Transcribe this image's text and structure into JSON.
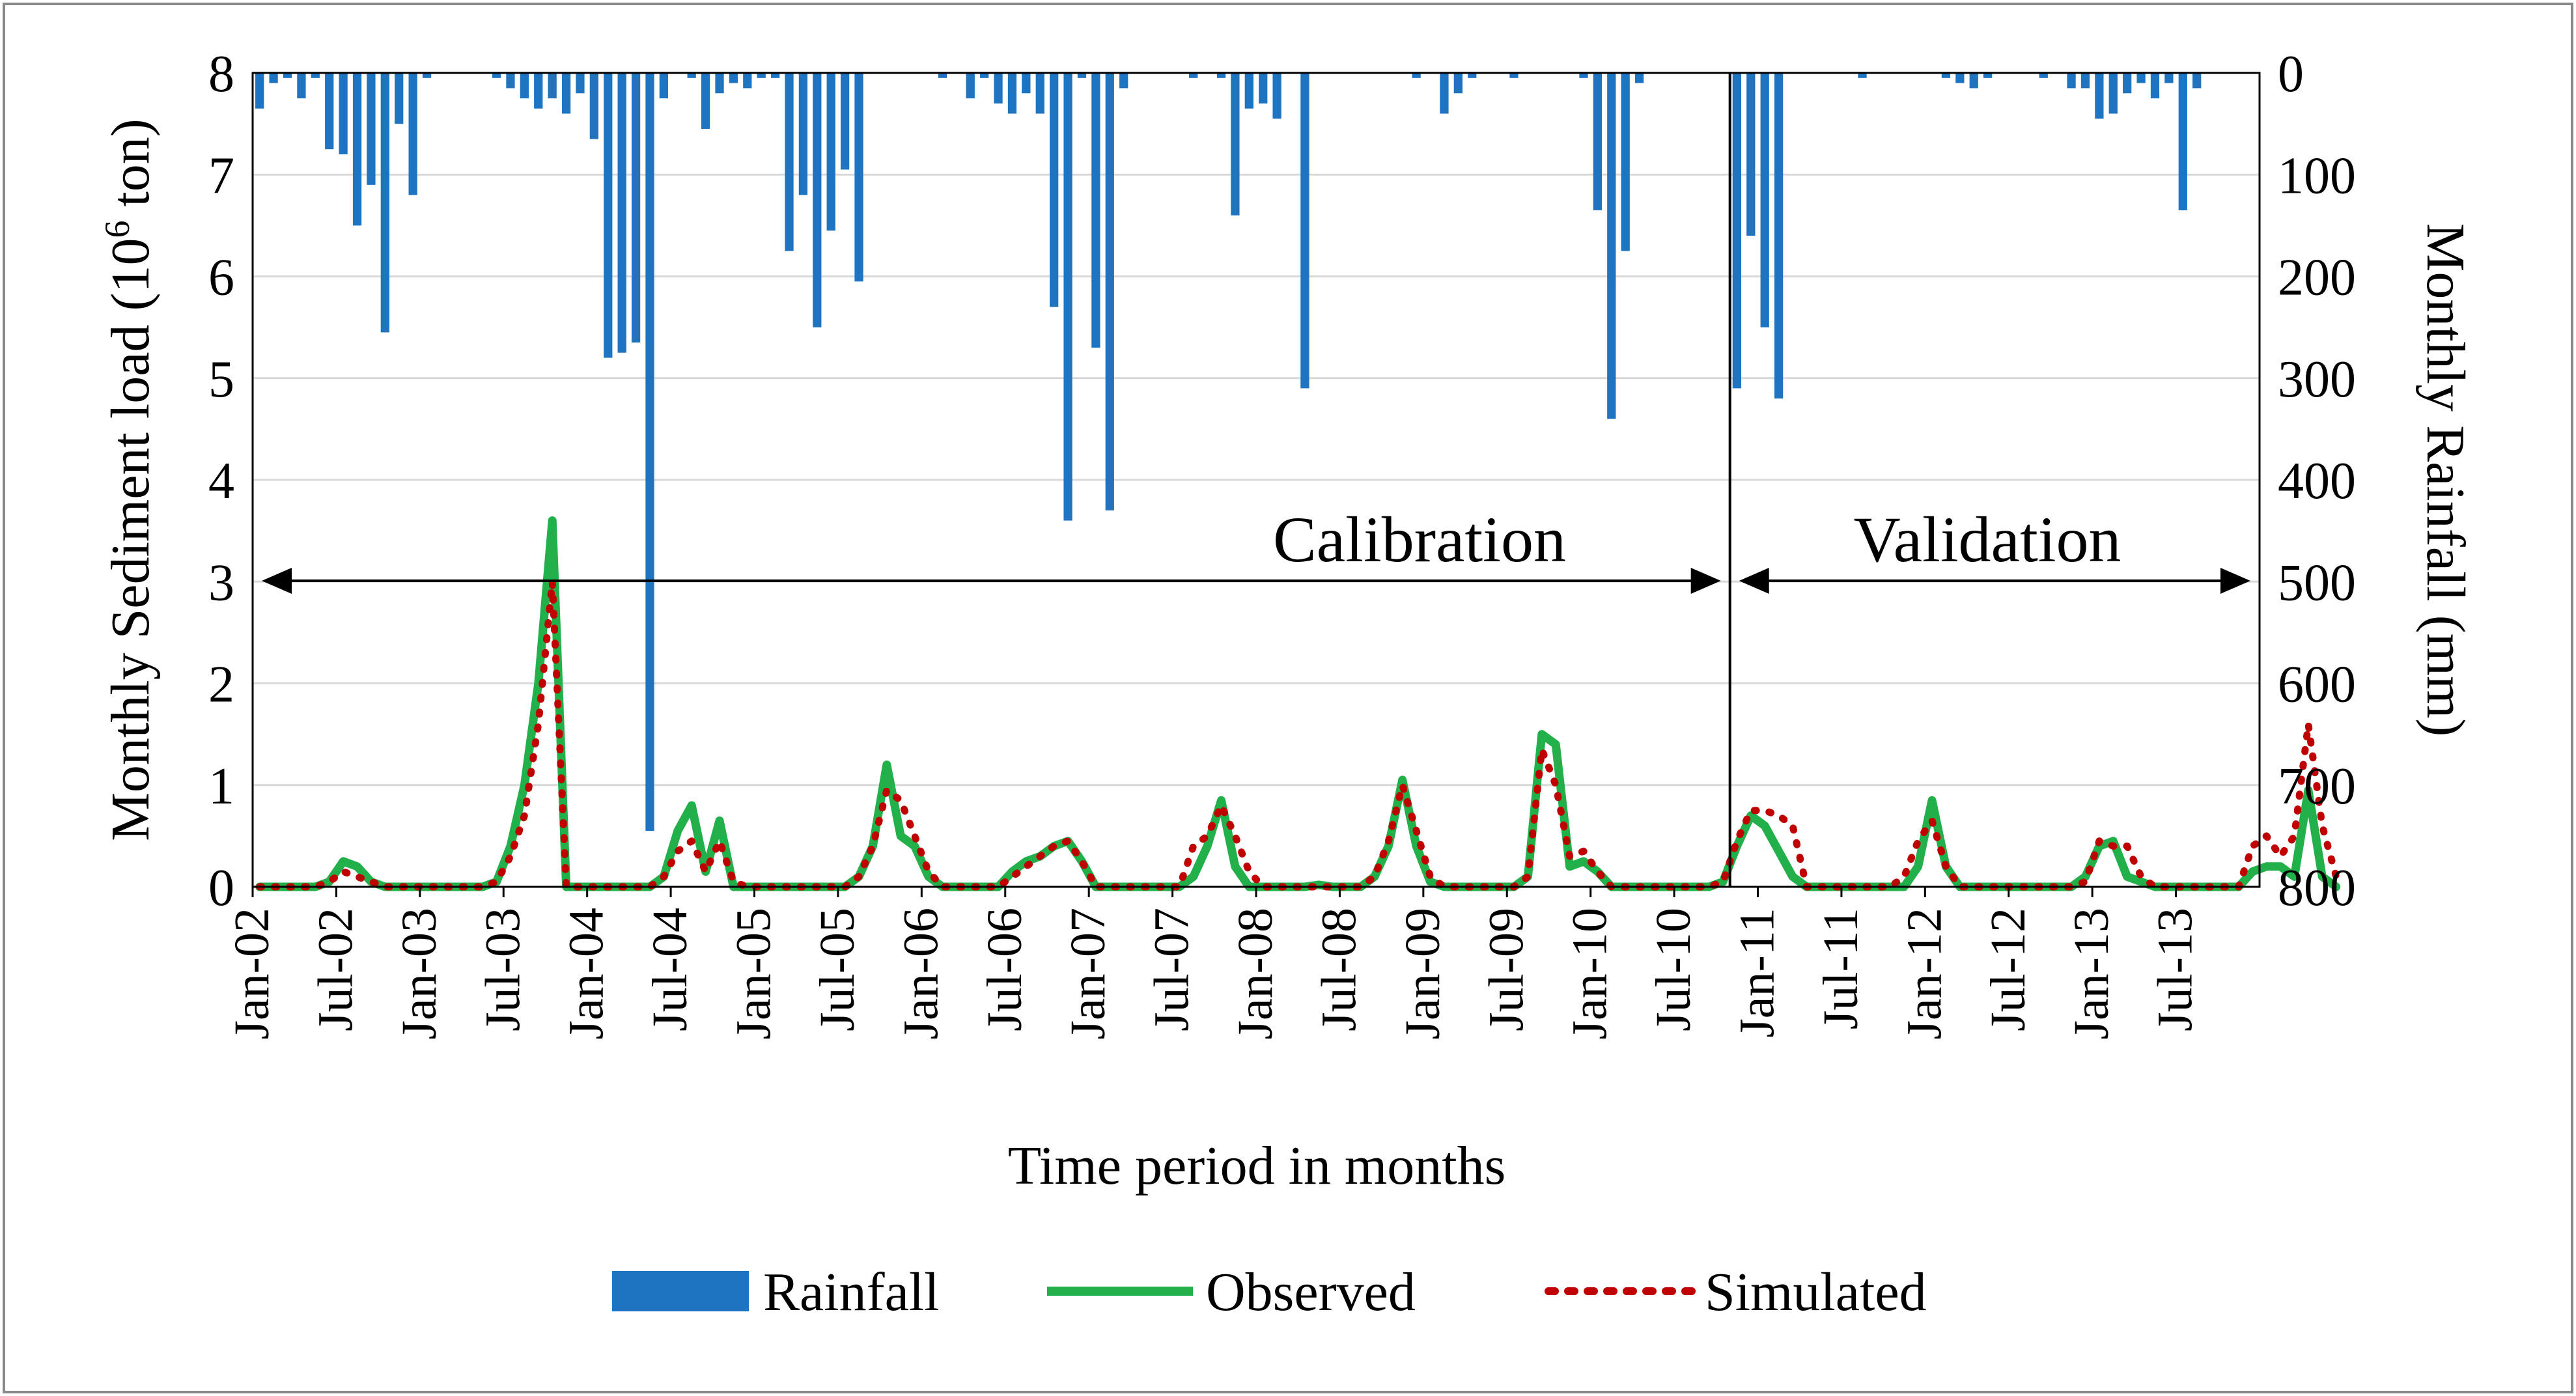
{
  "chart_data": {
    "type": "bar+line",
    "title": "",
    "xlabel": "Time period in months",
    "ylabel_left": "Monthly Sediment load (10⁶ ton)",
    "ylabel_left_main": "Monthly Sediment load (10",
    "ylabel_left_sup": "6",
    "ylabel_left_end": " ton)",
    "ylabel_right": "Monthly Rainfall (mm)",
    "ylim_left": [
      0,
      8
    ],
    "yticks_left": [
      "0",
      "1",
      "2",
      "3",
      "4",
      "5",
      "6",
      "7",
      "8"
    ],
    "ylim_right_inverted": [
      0,
      800
    ],
    "yticks_right": [
      "0",
      "100",
      "200",
      "300",
      "400",
      "500",
      "600",
      "700",
      "800"
    ],
    "start_month": "Jan-02",
    "n_months": 144,
    "x_tick_labels": [
      "Jan-02",
      "Jul-02",
      "Jan-03",
      "Jul-03",
      "Jan-04",
      "Jul-04",
      "Jan-05",
      "Jul-05",
      "Jan-06",
      "Jul-06",
      "Jan-07",
      "Jul-07",
      "Jan-08",
      "Jul-08",
      "Jan-09",
      "Jul-09",
      "Jan-10",
      "Jul-10",
      "Jan-11",
      "Jul-11",
      "Jan-12",
      "Jul-12",
      "Jan-13",
      "Jul-13"
    ],
    "series": [
      {
        "name": "Rainfall",
        "type": "bar",
        "axis": "right",
        "color": "#1f74c2",
        "values": [
          35,
          10,
          5,
          25,
          5,
          75,
          80,
          150,
          110,
          255,
          50,
          120,
          5,
          0,
          0,
          0,
          0,
          5,
          15,
          25,
          35,
          25,
          40,
          20,
          65,
          280,
          275,
          265,
          745,
          25,
          0,
          5,
          55,
          20,
          10,
          15,
          5,
          5,
          175,
          120,
          250,
          155,
          95,
          205,
          0,
          0,
          0,
          0,
          0,
          5,
          0,
          25,
          5,
          30,
          40,
          20,
          40,
          230,
          440,
          5,
          270,
          430,
          15,
          0,
          0,
          0,
          0,
          5,
          0,
          5,
          140,
          35,
          30,
          45,
          0,
          310,
          0,
          0,
          0,
          0,
          0,
          0,
          0,
          5,
          0,
          40,
          20,
          5,
          0,
          0,
          5,
          0,
          0,
          0,
          0,
          5,
          135,
          340,
          175,
          10,
          0,
          0,
          0,
          0,
          0,
          0,
          310,
          160,
          250,
          320,
          0,
          0,
          0,
          0,
          0,
          5,
          0,
          0,
          0,
          0,
          0,
          5,
          10,
          15,
          5,
          0,
          0,
          0,
          5,
          0,
          15,
          15,
          45,
          40,
          20,
          10,
          25,
          10,
          135,
          15,
          0,
          0,
          0,
          0
        ],
        "note": "per-month values approximated from the bar lengths"
      },
      {
        "name": "Observed",
        "type": "line",
        "axis": "left",
        "color": "#22b04b",
        "values": [
          0,
          0,
          0,
          0,
          0,
          0.05,
          0.25,
          0.2,
          0.05,
          0,
          0,
          0,
          0,
          0,
          0,
          0,
          0,
          0.05,
          0.4,
          1,
          2,
          3.6,
          0,
          0,
          0,
          0,
          0,
          0,
          0,
          0.1,
          0.55,
          0.8,
          0.15,
          0.65,
          0,
          0,
          0,
          0,
          0,
          0,
          0,
          0,
          0,
          0.1,
          0.4,
          1.2,
          0.5,
          0.4,
          0.1,
          0,
          0,
          0,
          0,
          0,
          0.15,
          0.25,
          0.3,
          0.4,
          0.45,
          0.25,
          0,
          0,
          0,
          0,
          0,
          0,
          0,
          0.1,
          0.4,
          0.85,
          0.2,
          0,
          0,
          0,
          0,
          0,
          0.02,
          0,
          0,
          0,
          0.1,
          0.4,
          1.05,
          0.4,
          0.05,
          0,
          0,
          0,
          0,
          0,
          0,
          0.1,
          1.5,
          1.4,
          0.2,
          0.25,
          0.15,
          0,
          0,
          0,
          0,
          0,
          0,
          0,
          0,
          0.05,
          0.4,
          0.7,
          0.6,
          0.35,
          0.1,
          0,
          0,
          0,
          0,
          0,
          0,
          0,
          0,
          0.2,
          0.85,
          0.2,
          0,
          0,
          0,
          0,
          0,
          0,
          0,
          0,
          0,
          0.1,
          0.4,
          0.45,
          0.1,
          0.05,
          0,
          0,
          0,
          0,
          0,
          0,
          0,
          0.15,
          0.2,
          0.2,
          0.1,
          0.95,
          0.1,
          0
        ]
      },
      {
        "name": "Simulated",
        "type": "line",
        "axis": "left",
        "color": "#c00000",
        "values": [
          0,
          0,
          0,
          0,
          0,
          0.05,
          0.15,
          0.1,
          0.05,
          0,
          0,
          0,
          0,
          0,
          0,
          0,
          0,
          0.05,
          0.3,
          0.7,
          1.6,
          3.0,
          0,
          0,
          0,
          0,
          0,
          0,
          0,
          0.1,
          0.35,
          0.45,
          0.15,
          0.45,
          0.05,
          0,
          0,
          0,
          0,
          0,
          0,
          0,
          0,
          0.1,
          0.4,
          0.95,
          0.85,
          0.5,
          0.15,
          0,
          0,
          0,
          0,
          0,
          0.1,
          0.2,
          0.3,
          0.4,
          0.45,
          0.25,
          0,
          0,
          0,
          0,
          0,
          0,
          0,
          0.4,
          0.5,
          0.8,
          0.5,
          0.15,
          0,
          0,
          0,
          0,
          0,
          0,
          0,
          0,
          0.1,
          0.45,
          1.0,
          0.55,
          0.1,
          0,
          0,
          0,
          0,
          0,
          0,
          0.1,
          1.35,
          1.0,
          0.3,
          0.35,
          0.15,
          0,
          0,
          0,
          0,
          0,
          0,
          0,
          0,
          0.05,
          0.45,
          0.75,
          0.75,
          0.7,
          0.6,
          0,
          0,
          0,
          0,
          0,
          0,
          0,
          0.1,
          0.45,
          0.65,
          0.2,
          0,
          0,
          0,
          0,
          0,
          0,
          0,
          0,
          0,
          0.05,
          0.45,
          0.4,
          0.4,
          0.1,
          0,
          0,
          0,
          0,
          0,
          0,
          0,
          0.4,
          0.5,
          0.3,
          0.5,
          1.6,
          0.6,
          0.1
        ]
      }
    ],
    "annotations": [
      {
        "text": "Calibration",
        "from_month": 0,
        "to_month": 106
      },
      {
        "text": "Validation",
        "from_month": 106,
        "to_month": 143
      }
    ],
    "divider_month": 106,
    "legend": {
      "position": "bottom",
      "items": [
        "Rainfall",
        "Observed",
        "Simulated"
      ]
    }
  }
}
